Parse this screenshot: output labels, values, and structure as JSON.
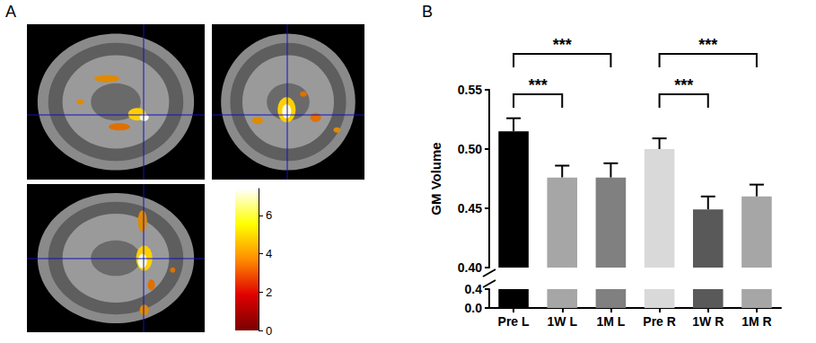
{
  "chart_data": [
    {
      "type": "image",
      "panel": "A",
      "colorbar": {
        "range": [
          0,
          7.4
        ],
        "ticks": [
          0,
          2,
          4,
          6
        ],
        "colors": [
          "#7a0000",
          "#e00000",
          "#ff8c00",
          "#ffff00",
          "#ffffff"
        ]
      }
    },
    {
      "type": "bar",
      "panel": "B",
      "y_label": "GM Volume",
      "categories": [
        "Pre L",
        "1W L",
        "1M L",
        "Pre R",
        "1W R",
        "1M R"
      ],
      "values": [
        0.515,
        0.476,
        0.476,
        0.5,
        0.449,
        0.46
      ],
      "errors": [
        0.011,
        0.01,
        0.012,
        0.009,
        0.011,
        0.01
      ],
      "colors": [
        "#000000",
        "#a6a6a6",
        "#808080",
        "#d9d9d9",
        "#595959",
        "#a6a6a6"
      ],
      "y_segments": [
        {
          "ylim": [
            0,
            0.4
          ],
          "yticks": [
            {
              "value": 0,
              "label": "0.0"
            },
            {
              "value": 0.4,
              "label": "0.4"
            }
          ]
        },
        {
          "ylim": [
            0.4,
            0.55
          ],
          "yticks": [
            {
              "value": 0.4,
              "label": "0.40"
            },
            {
              "value": 0.45,
              "label": "0.45"
            },
            {
              "value": 0.5,
              "label": "0.50"
            },
            {
              "value": 0.55,
              "label": "0.55"
            }
          ]
        }
      ],
      "annotations": [
        {
          "from": "Pre L",
          "to": "1W L",
          "label": "***"
        },
        {
          "from": "Pre L",
          "to": "1M L",
          "label": "***"
        },
        {
          "from": "Pre R",
          "to": "1W R",
          "label": "***"
        },
        {
          "from": "Pre R",
          "to": "1M R",
          "label": "***"
        }
      ]
    }
  ]
}
